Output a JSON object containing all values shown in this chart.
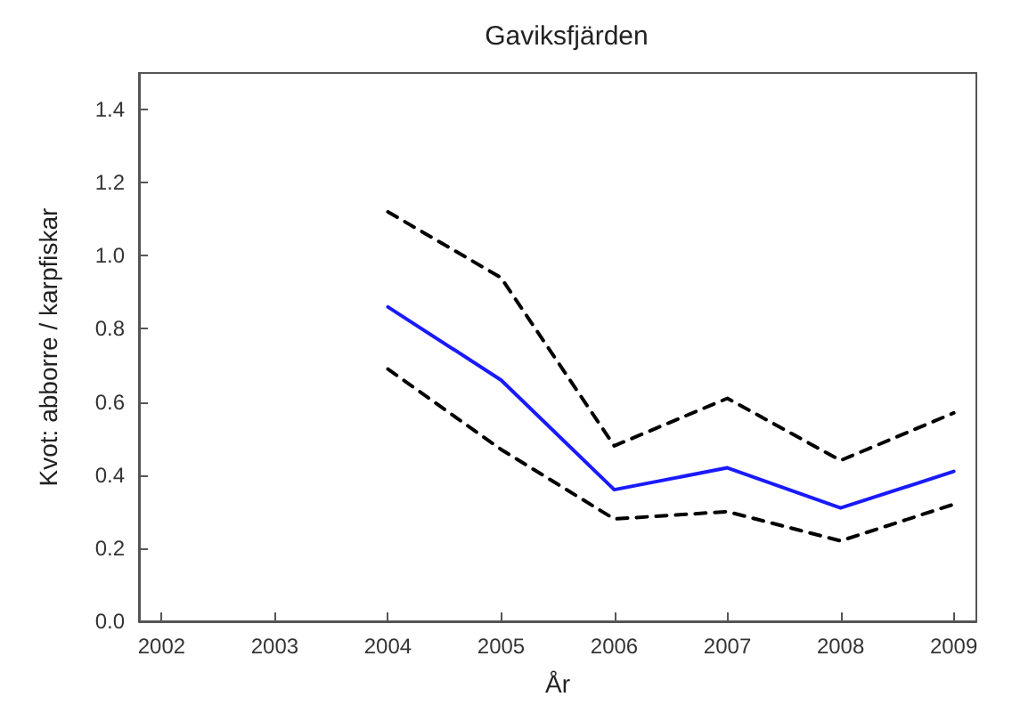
{
  "chart_data": {
    "type": "line",
    "title": "Gaviksfjärden",
    "xlabel": "År",
    "ylabel": "Kvot: abborre / karpfiskar",
    "x": [
      2004,
      2005,
      2006,
      2007,
      2008,
      2009
    ],
    "series": [
      {
        "color": "#1a1aff",
        "line_style": "solid",
        "values": [
          0.86,
          0.66,
          0.36,
          0.42,
          0.31,
          0.41
        ]
      },
      {
        "color": "#000000",
        "line_style": "dashed",
        "values": [
          1.12,
          0.94,
          0.48,
          0.61,
          0.44,
          0.57
        ]
      },
      {
        "color": "#000000",
        "line_style": "dashed",
        "values": [
          0.69,
          0.47,
          0.28,
          0.3,
          0.22,
          0.32
        ]
      }
    ],
    "xlim": [
      2001.8,
      2009.2
    ],
    "xticks": [
      2002,
      2003,
      2004,
      2005,
      2006,
      2007,
      2008,
      2009
    ],
    "ylim": [
      0,
      1.5
    ],
    "yticks": [
      {
        "value": 0,
        "label": "0.0"
      },
      0.2,
      0.4,
      0.6,
      0.8,
      {
        "value": 1,
        "label": "1.0"
      },
      1.2,
      1.4
    ],
    "grid": false,
    "marker": "none"
  }
}
